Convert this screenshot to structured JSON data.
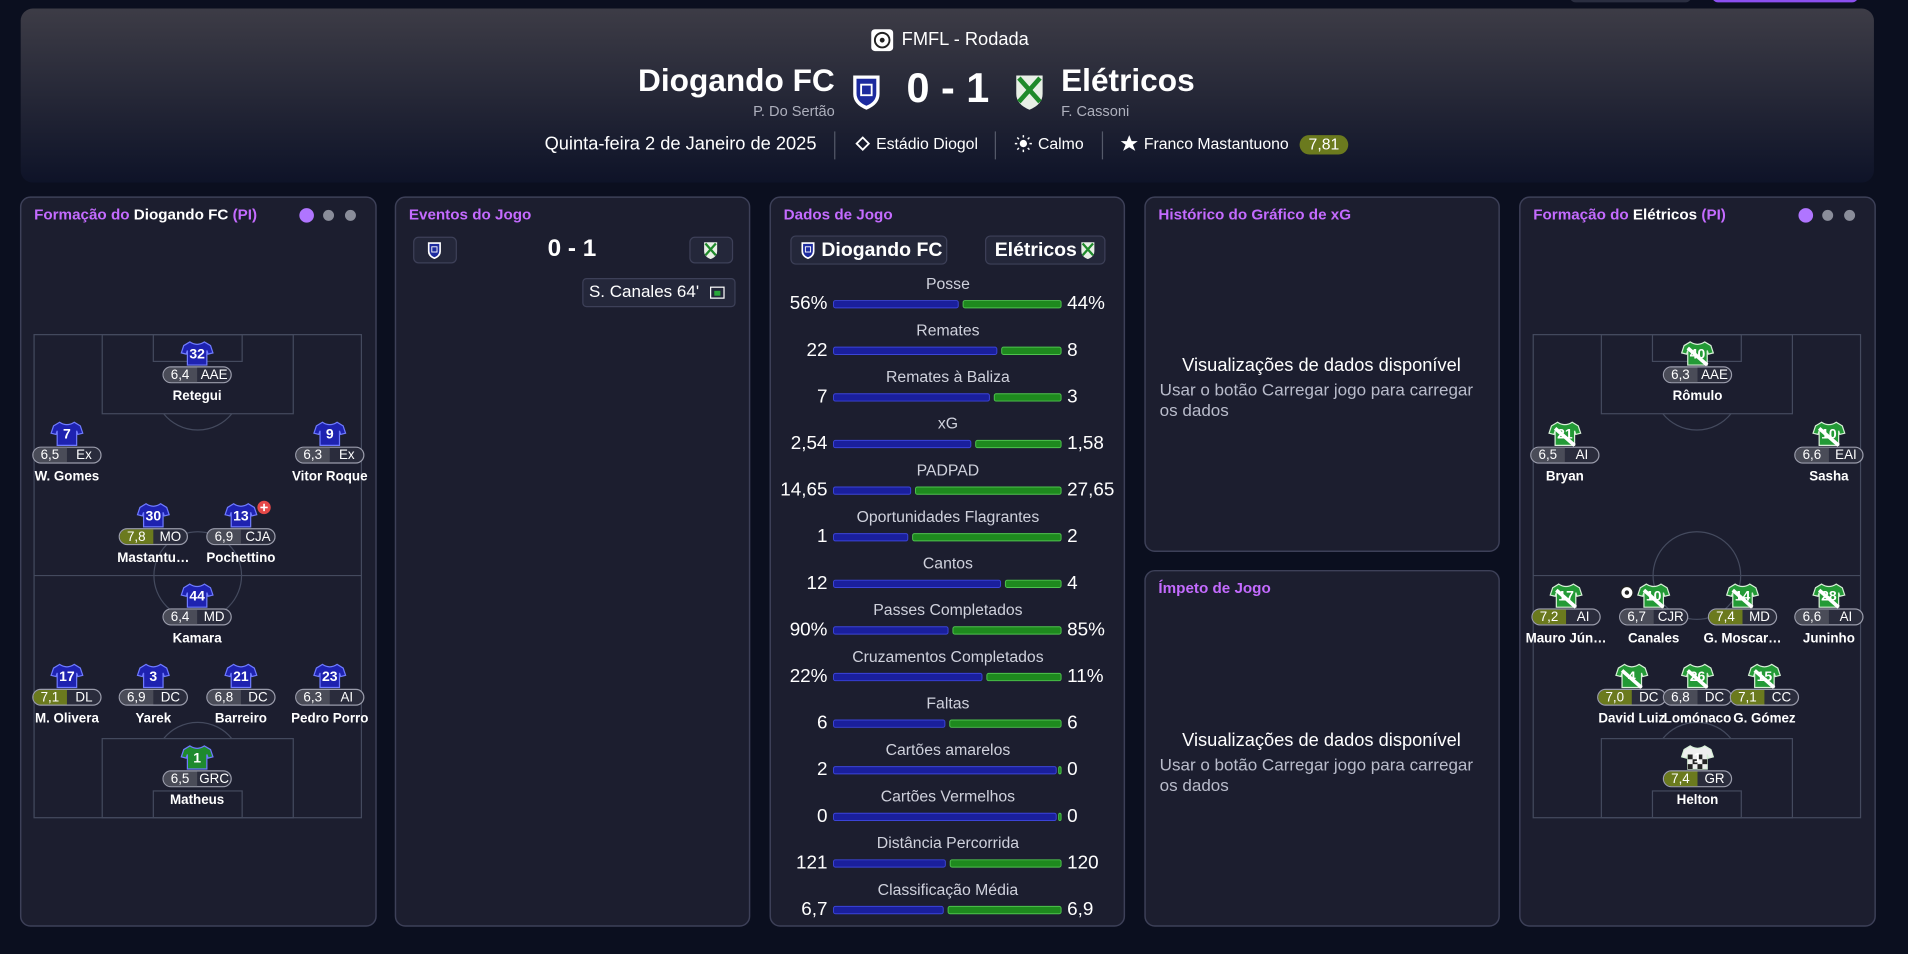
{
  "header": {
    "competition": "FMFL - Rodada",
    "home_team": "Diogando FC",
    "home_manager": "P. Do Sertão",
    "score": "0 - 1",
    "away_team": "Elétricos",
    "away_manager": "F. Cassoni",
    "date": "Quinta-feira 2 de Janeiro de 2025",
    "stadium": "Estádio Diogol",
    "weather": "Calmo",
    "player_of_match": "Franco Mastantuono",
    "player_of_match_rating": "7,81"
  },
  "home_lineup": {
    "title_prefix": "Formação do",
    "team": "Diogando FC",
    "tag": "(PI)",
    "players": [
      {
        "number": 32,
        "rating": "6,4",
        "position": "AAE",
        "name": "Retegui"
      },
      {
        "number": 7,
        "rating": "6,5",
        "position": "Ex",
        "name": "W. Gomes"
      },
      {
        "number": 9,
        "rating": "6,3",
        "position": "Ex",
        "name": "Vitor Roque"
      },
      {
        "number": 30,
        "rating": "7,8",
        "position": "MO",
        "name": "Mastantu…"
      },
      {
        "number": 13,
        "rating": "6,9",
        "position": "CJA",
        "name": "Pochettino"
      },
      {
        "number": 44,
        "rating": "6,4",
        "position": "MD",
        "name": "Kamara"
      },
      {
        "number": 17,
        "rating": "7,1",
        "position": "DL",
        "name": "M. Olivera"
      },
      {
        "number": 3,
        "rating": "6,9",
        "position": "DC",
        "name": "Yarek"
      },
      {
        "number": 21,
        "rating": "6,8",
        "position": "DC",
        "name": "Barreiro"
      },
      {
        "number": 23,
        "rating": "6,3",
        "position": "AI",
        "name": "Pedro Porro"
      },
      {
        "number": 1,
        "rating": "6,5",
        "position": "GRC",
        "name": "Matheus"
      }
    ]
  },
  "events": {
    "title": "Eventos do Jogo",
    "score": "0 - 1",
    "items": [
      "S. Canales 64'"
    ]
  },
  "stats": {
    "title": "Dados de Jogo",
    "home_team": "Diogando FC",
    "away_team": "Elétricos",
    "rows": [
      {
        "label": "Posse",
        "home": {
          "value": 56,
          "label": "56%"
        },
        "away": {
          "value": 44,
          "label": "44%"
        }
      },
      {
        "label": "Remates",
        "home": 22,
        "away": 8
      },
      {
        "label": "Remates à Baliza",
        "home": 7,
        "away": 3
      },
      {
        "label": "xG",
        "home": {
          "value": 2.54,
          "label": "2,54"
        },
        "away": {
          "value": 1.58,
          "label": "1,58"
        }
      },
      {
        "label": "PADPAD",
        "home": {
          "value": 14.65,
          "label": "14,65"
        },
        "away": {
          "value": 27.65,
          "label": "27,65"
        }
      },
      {
        "label": "Oportunidades Flagrantes",
        "home": 1,
        "away": 2
      },
      {
        "label": "Cantos",
        "home": 12,
        "away": 4
      },
      {
        "label": "Passes Completados",
        "home": {
          "value": 90,
          "label": "90%"
        },
        "away": {
          "value": 85,
          "label": "85%"
        }
      },
      {
        "label": "Cruzamentos Completados",
        "home": {
          "value": 22,
          "label": "22%"
        },
        "away": {
          "value": 11,
          "label": "11%"
        }
      },
      {
        "label": "Faltas",
        "home": 6,
        "away": 6
      },
      {
        "label": "Cartões amarelos",
        "home": 2,
        "away": 0
      },
      {
        "label": "Cartões Vermelhos",
        "home": 0,
        "away": 0
      },
      {
        "label": "Distância Percorrida",
        "home": 121,
        "away": 120
      },
      {
        "label": "Classificação Média",
        "home": {
          "value": 6.7,
          "label": "6,7"
        },
        "away": {
          "value": 6.9,
          "label": "6,9"
        }
      }
    ]
  },
  "xg_panel": {
    "title": "Histórico do Gráfico de xG",
    "message_title": "Visualizações de dados disponível",
    "message": "Usar o botão Carregar jogo para carregar os dados"
  },
  "momentum_panel": {
    "title": "Ímpeto de Jogo",
    "message_title": "Visualizações de dados disponível",
    "message": "Usar o botão Carregar jogo para carregar os dados"
  },
  "away_lineup": {
    "title_prefix": "Formação do",
    "team": "Elétricos",
    "tag": "(PI)",
    "players": [
      {
        "number": 40,
        "rating": "6,3",
        "position": "AAE",
        "name": "Rômulo"
      },
      {
        "number": 21,
        "rating": "6,5",
        "position": "AI",
        "name": "Bryan"
      },
      {
        "number": 10,
        "rating": "6,6",
        "position": "EAI",
        "name": "Sasha"
      },
      {
        "number": 17,
        "rating": "7,2",
        "position": "AI",
        "name": "Mauro Jún…"
      },
      {
        "number": 10,
        "rating": "6,7",
        "position": "CJR",
        "name": "Canales"
      },
      {
        "number": 14,
        "rating": "7,4",
        "position": "MD",
        "name": "G. Moscar…"
      },
      {
        "number": 28,
        "rating": "6,6",
        "position": "AI",
        "name": "Juninho"
      },
      {
        "number": 4,
        "rating": "7,0",
        "position": "DC",
        "name": "David Luiz"
      },
      {
        "number": 26,
        "rating": "6,8",
        "position": "DC",
        "name": "Lomónaco"
      },
      {
        "number": 15,
        "rating": "7,1",
        "position": "CC",
        "name": "G. Gómez"
      },
      {
        "number": 1,
        "rating": "7,4",
        "position": "GR",
        "name": "Helton"
      }
    ]
  }
}
